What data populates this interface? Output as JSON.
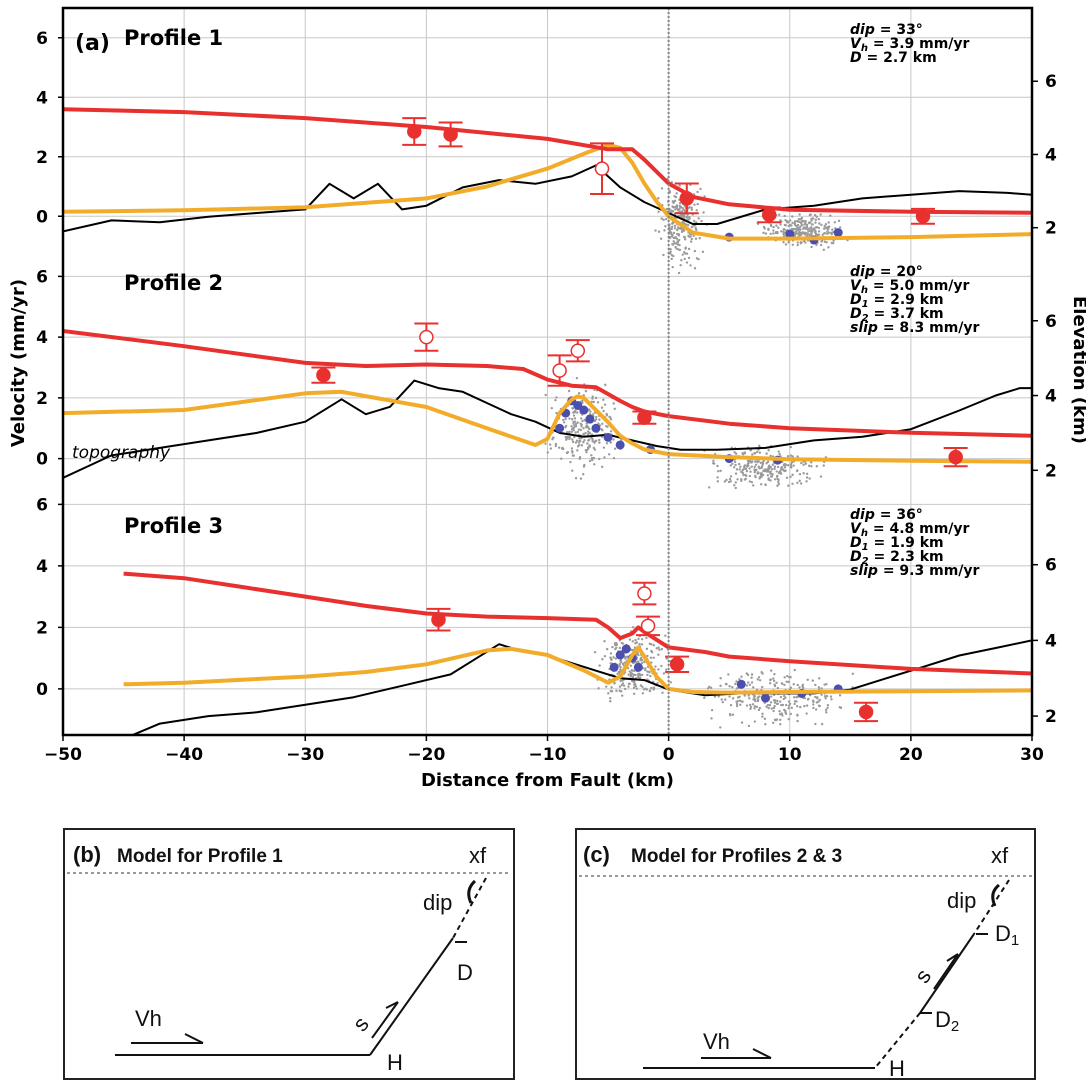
{
  "panel_a": {
    "letter": "(a)",
    "topography_label": "topography",
    "left_axis_label": "Velocity (mm/yr)",
    "right_axis_label": "Elevation (km)",
    "x_axis_label": "Distance from Fault (km)",
    "x_ticks": [
      "−50",
      "−40",
      "−30",
      "−20",
      "−10",
      "0",
      "10",
      "20",
      "30"
    ],
    "v_ticks": [
      "6",
      "4",
      "2",
      "0"
    ],
    "e_ticks": [
      "6",
      "4",
      "2"
    ],
    "profiles": [
      {
        "title": "Profile 1",
        "params": [
          {
            "name": "dip",
            "sub": "",
            "value": " = 33°"
          },
          {
            "name": "V",
            "sub": "h",
            "value": " = 3.9 mm/yr"
          },
          {
            "name": "D",
            "sub": "",
            "value": " = 2.7 km"
          }
        ]
      },
      {
        "title": "Profile 2",
        "params": [
          {
            "name": "dip",
            "sub": "",
            "value": " = 20°"
          },
          {
            "name": "V",
            "sub": "h",
            "value": " = 5.0 mm/yr"
          },
          {
            "name": "D",
            "sub": "1",
            "value": " = 2.9 km"
          },
          {
            "name": "D",
            "sub": "2",
            "value": " = 3.7 km"
          },
          {
            "name": "slip",
            "sub": "",
            "value": " = 8.3 mm/yr"
          }
        ]
      },
      {
        "title": "Profile 3",
        "params": [
          {
            "name": "dip",
            "sub": "",
            "value": " = 36°"
          },
          {
            "name": "V",
            "sub": "h",
            "value": " = 4.8 mm/yr"
          },
          {
            "name": "D",
            "sub": "1",
            "value": " = 1.9 km"
          },
          {
            "name": "D",
            "sub": "2",
            "value": " = 2.3 km"
          },
          {
            "name": "slip",
            "sub": "",
            "value": " = 9.3 mm/yr"
          }
        ]
      }
    ]
  },
  "panel_b": {
    "letter": "(b)",
    "title": "Model for Profile 1",
    "labels": {
      "xf": "xf",
      "dip": "dip",
      "d": "D",
      "s": "s",
      "vh": "Vh",
      "h": "H"
    }
  },
  "panel_c": {
    "letter": "(c)",
    "title": "Model for Profiles 2 & 3",
    "labels": {
      "xf": "xf",
      "dip": "dip",
      "d1": "D",
      "d1_sub": "1",
      "d2": "D",
      "d2_sub": "2",
      "s": "s",
      "vh": "Vh",
      "h": "H"
    }
  },
  "colors": {
    "model_red": "#e8312f",
    "model_orange": "#f2ac2a",
    "topography": "#000000",
    "insar_gray": "#9a9a9a",
    "insar_blue": "#4a4fb0",
    "gps_red": "#e8312f",
    "grid": "#c8c8c8"
  },
  "chart_data": {
    "type": "line",
    "xlabel": "Distance from Fault (km)",
    "ylabel": "Velocity (mm/yr)",
    "y2label": "Elevation (km)",
    "xlim": [
      -50,
      30
    ],
    "grid": true,
    "panels": [
      {
        "name": "Profile 1",
        "ylim": [
          -1,
          7
        ],
        "y2lim": [
          1.5,
          8
        ],
        "red_model": {
          "x": [
            -50,
            -40,
            -30,
            -20,
            -10,
            -5,
            -3,
            -2,
            0,
            2,
            5,
            10,
            20,
            30
          ],
          "y": [
            3.6,
            3.5,
            3.3,
            3.0,
            2.6,
            2.25,
            2.25,
            1.9,
            1.1,
            0.65,
            0.4,
            0.22,
            0.15,
            0.12
          ]
        },
        "orange_model": {
          "x": [
            -50,
            -40,
            -30,
            -20,
            -15,
            -10,
            -7,
            -5,
            -4,
            -3,
            -2,
            -1,
            0,
            2,
            5,
            10,
            20,
            30
          ],
          "y": [
            0.15,
            0.2,
            0.3,
            0.6,
            1.0,
            1.6,
            2.1,
            2.4,
            2.3,
            1.8,
            1.1,
            0.5,
            0.0,
            -0.55,
            -0.75,
            -0.75,
            -0.7,
            -0.6
          ]
        },
        "topography": {
          "x": [
            -50,
            -46,
            -42,
            -38,
            -34,
            -30,
            -28,
            -26,
            -24,
            -22,
            -20,
            -17,
            -14,
            -11,
            -8,
            -6,
            -4,
            -2,
            0,
            2,
            4,
            8,
            12,
            16,
            20,
            24,
            28,
            30
          ],
          "y": [
            1.9,
            2.2,
            2.15,
            2.3,
            2.4,
            2.5,
            3.2,
            2.8,
            3.2,
            2.5,
            2.6,
            3.1,
            3.3,
            3.2,
            3.4,
            3.7,
            3.1,
            2.7,
            2.4,
            2.1,
            2.1,
            2.5,
            2.6,
            2.8,
            2.9,
            3.0,
            2.95,
            2.9
          ]
        },
        "gps": [
          {
            "x": -21,
            "y": 2.85,
            "err": 0.45,
            "filled": true
          },
          {
            "x": -18,
            "y": 2.75,
            "err": 0.4,
            "filled": true
          },
          {
            "x": -5.5,
            "y": 1.6,
            "err": 0.85,
            "filled": false
          },
          {
            "x": 1.5,
            "y": 0.6,
            "err": 0.5,
            "filled": true
          },
          {
            "x": 8.3,
            "y": 0.05,
            "err": 0.25,
            "filled": true
          },
          {
            "x": 21,
            "y": 0.0,
            "err": 0.25,
            "filled": true
          }
        ],
        "insar_blue": [
          {
            "x": 5,
            "y": -0.7
          },
          {
            "x": 10,
            "y": -0.6
          },
          {
            "x": 12,
            "y": -0.8
          },
          {
            "x": 14,
            "y": -0.55
          }
        ]
      },
      {
        "name": "Profile 2",
        "ylim": [
          -1,
          7
        ],
        "y2lim": [
          1.5,
          8
        ],
        "red_model": {
          "x": [
            -50,
            -40,
            -30,
            -25,
            -20,
            -15,
            -12,
            -10,
            -8,
            -6,
            -4,
            -3,
            -2,
            0,
            5,
            10,
            20,
            30
          ],
          "y": [
            4.2,
            3.7,
            3.15,
            3.05,
            3.1,
            3.05,
            2.95,
            2.6,
            2.4,
            2.35,
            1.9,
            1.7,
            1.55,
            1.4,
            1.15,
            1.0,
            0.85,
            0.75
          ]
        },
        "orange_model": {
          "x": [
            -50,
            -40,
            -30,
            -27,
            -20,
            -15,
            -11,
            -10,
            -9,
            -8,
            -7.5,
            -7,
            -5,
            -4,
            -3,
            -2,
            0,
            5,
            10,
            20,
            30
          ],
          "y": [
            1.5,
            1.6,
            2.15,
            2.2,
            1.7,
            1.0,
            0.45,
            0.65,
            1.5,
            1.95,
            2.05,
            2.0,
            1.2,
            0.75,
            0.5,
            0.3,
            0.15,
            0.05,
            -0.02,
            -0.07,
            -0.1
          ]
        },
        "topography": {
          "x": [
            -50,
            -46,
            -42,
            -38,
            -34,
            -30,
            -27,
            -25,
            -23,
            -21,
            -19,
            -17,
            -15,
            -13,
            -11,
            -9,
            -7,
            -5,
            -3,
            -1,
            1,
            4,
            8,
            12,
            16,
            20,
            24,
            27,
            29,
            30
          ],
          "y": [
            1.8,
            2.4,
            2.6,
            2.8,
            3.0,
            3.3,
            3.9,
            3.5,
            3.7,
            4.4,
            4.2,
            4.1,
            3.8,
            3.5,
            3.3,
            3.0,
            2.9,
            2.95,
            2.8,
            2.65,
            2.55,
            2.55,
            2.6,
            2.8,
            2.9,
            3.1,
            3.6,
            4.0,
            4.2,
            4.2
          ]
        },
        "gps": [
          {
            "x": -28.5,
            "y": 2.75,
            "err": 0.25,
            "filled": true
          },
          {
            "x": -20,
            "y": 4.0,
            "err": 0.45,
            "filled": false
          },
          {
            "x": -7.5,
            "y": 3.55,
            "err": 0.35,
            "filled": false
          },
          {
            "x": -9,
            "y": 2.9,
            "err": 0.5,
            "filled": false
          },
          {
            "x": -2,
            "y": 1.35,
            "err": 0.2,
            "filled": true
          },
          {
            "x": 23.7,
            "y": 0.05,
            "err": 0.3,
            "filled": true
          }
        ],
        "insar_blue": [
          {
            "x": -9,
            "y": 1.0
          },
          {
            "x": -8.5,
            "y": 1.5
          },
          {
            "x": -8,
            "y": 1.9
          },
          {
            "x": -7.5,
            "y": 1.75
          },
          {
            "x": -7,
            "y": 1.6
          },
          {
            "x": -6.5,
            "y": 1.3
          },
          {
            "x": -6,
            "y": 1.0
          },
          {
            "x": -5,
            "y": 0.7
          },
          {
            "x": -4,
            "y": 0.45
          },
          {
            "x": -1.5,
            "y": 0.3
          },
          {
            "x": 5,
            "y": 0.0
          },
          {
            "x": 9,
            "y": -0.05
          }
        ]
      },
      {
        "name": "Profile 3",
        "ylim": [
          -1.5,
          6.5
        ],
        "y2lim": [
          1.5,
          8
        ],
        "red_model": {
          "x": [
            -45,
            -40,
            -35,
            -30,
            -25,
            -20,
            -15,
            -10,
            -6,
            -5,
            -4,
            -3,
            -2.5,
            -2,
            -1,
            0,
            1,
            3,
            5,
            10,
            20,
            30
          ],
          "y": [
            3.75,
            3.6,
            3.3,
            3.0,
            2.7,
            2.45,
            2.35,
            2.3,
            2.25,
            2.0,
            1.65,
            1.8,
            2.0,
            1.85,
            1.6,
            1.35,
            1.3,
            1.2,
            1.05,
            0.9,
            0.65,
            0.5
          ]
        },
        "orange_model": {
          "x": [
            -45,
            -40,
            -35,
            -30,
            -25,
            -20,
            -15,
            -13,
            -10,
            -7,
            -5,
            -4,
            -3,
            -2.5,
            -2,
            -1,
            0,
            2,
            5,
            10,
            20,
            30
          ],
          "y": [
            0.15,
            0.2,
            0.3,
            0.4,
            0.55,
            0.8,
            1.25,
            1.3,
            1.1,
            0.6,
            0.2,
            0.4,
            1.1,
            1.35,
            1.05,
            0.4,
            0.0,
            -0.1,
            -0.12,
            -0.1,
            -0.08,
            -0.05
          ]
        },
        "topography": {
          "x": [
            -45,
            -42,
            -38,
            -34,
            -30,
            -26,
            -22,
            -18,
            -16,
            -14,
            -12,
            -10,
            -8,
            -6,
            -4,
            -2,
            0,
            3,
            6,
            9,
            12,
            15,
            18,
            21,
            24,
            27,
            30
          ],
          "y": [
            1.4,
            1.8,
            2.0,
            2.1,
            2.3,
            2.5,
            2.8,
            3.1,
            3.5,
            3.9,
            3.7,
            3.6,
            3.4,
            3.2,
            3.0,
            2.95,
            2.7,
            2.55,
            2.6,
            2.6,
            2.6,
            2.7,
            3.0,
            3.3,
            3.6,
            3.8,
            4.0
          ]
        },
        "gps": [
          {
            "x": -19,
            "y": 2.25,
            "err": 0.35,
            "filled": true
          },
          {
            "x": -2,
            "y": 3.1,
            "err": 0.35,
            "filled": false
          },
          {
            "x": -1.7,
            "y": 2.05,
            "err": 0.3,
            "filled": false
          },
          {
            "x": 0.7,
            "y": 0.8,
            "err": 0.25,
            "filled": true
          },
          {
            "x": 16.3,
            "y": -0.75,
            "err": 0.3,
            "filled": true
          }
        ],
        "insar_blue": [
          {
            "x": -4.5,
            "y": 0.7
          },
          {
            "x": -4,
            "y": 1.1
          },
          {
            "x": -3.5,
            "y": 1.3
          },
          {
            "x": -3,
            "y": 1.0
          },
          {
            "x": -2.5,
            "y": 0.7
          },
          {
            "x": 6,
            "y": 0.15
          },
          {
            "x": 8,
            "y": -0.3
          },
          {
            "x": 11,
            "y": -0.15
          },
          {
            "x": 14,
            "y": 0.0
          }
        ]
      }
    ]
  }
}
